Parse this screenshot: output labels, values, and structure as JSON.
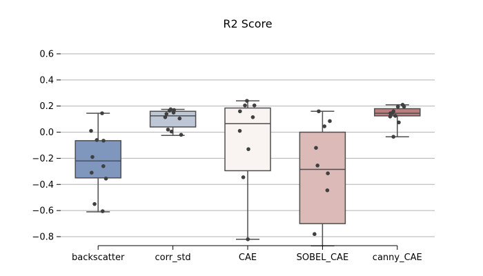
{
  "chart_data": {
    "type": "box",
    "title": "R2 Score",
    "xlabel": "",
    "ylabel": "",
    "ylim": [
      -0.87,
      0.66
    ],
    "grid": "horizontal",
    "yticks": [
      -0.8,
      -0.6,
      -0.4,
      -0.2,
      0.0,
      0.2,
      0.4,
      0.6
    ],
    "ytick_labels": [
      "−0.8",
      "−0.6",
      "−0.4",
      "−0.2",
      "0.0",
      "0.2",
      "0.4",
      "0.6"
    ],
    "categories": [
      "backscatter",
      "corr_std",
      "CAE",
      "SOBEL_CAE",
      "canny_CAE"
    ],
    "boxes": [
      {
        "color": "#7f96bd",
        "whisker_low": -0.61,
        "q1": -0.35,
        "median": -0.22,
        "q3": -0.065,
        "whisker_high": 0.145,
        "points": [
          0.145,
          0.01,
          -0.06,
          -0.065,
          -0.19,
          -0.26,
          -0.31,
          -0.355,
          -0.55,
          -0.605
        ]
      },
      {
        "color": "#bec7d5",
        "whisker_low": -0.025,
        "q1": 0.04,
        "median": 0.125,
        "q3": 0.16,
        "whisker_high": 0.175,
        "points": [
          0.17,
          0.175,
          0.165,
          0.15,
          0.14,
          0.115,
          0.105,
          0.02,
          0.005,
          -0.02
        ]
      },
      {
        "color": "#f9f4f2",
        "whisker_low": -0.82,
        "q1": -0.295,
        "median": 0.065,
        "q3": 0.185,
        "whisker_high": 0.24,
        "points": [
          0.24,
          0.205,
          0.205,
          0.16,
          0.115,
          0.01,
          -0.13,
          -0.345,
          -0.82
        ]
      },
      {
        "color": "#dbbab8",
        "whisker_low": -0.87,
        "q1": -0.7,
        "median": -0.285,
        "q3": 0.0,
        "whisker_high": 0.16,
        "points": [
          0.16,
          0.085,
          0.045,
          -0.12,
          -0.255,
          -0.315,
          -0.445,
          -0.78
        ]
      },
      {
        "color": "#bd7f7e",
        "whisker_low": -0.035,
        "q1": 0.125,
        "median": 0.145,
        "q3": 0.18,
        "whisker_high": 0.21,
        "points": [
          0.21,
          0.195,
          0.195,
          0.16,
          0.145,
          0.145,
          0.125,
          0.12,
          0.075,
          -0.035
        ]
      }
    ],
    "style": {
      "grid_color": "#b0b0b0",
      "edge_color": "#4d4d4d",
      "point_color": "#404040"
    }
  }
}
